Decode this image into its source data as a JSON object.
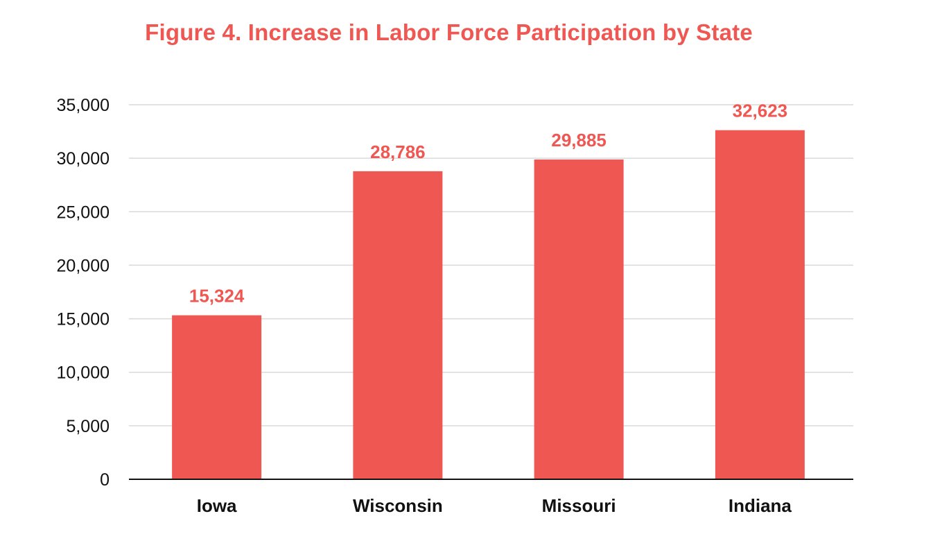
{
  "chart_data": {
    "type": "bar",
    "title": "Figure 4.  Increase in Labor Force Participation by State",
    "xlabel": "",
    "ylabel": "",
    "categories": [
      "Iowa",
      "Wisconsin",
      "Missouri",
      "Indiana"
    ],
    "values": [
      15324,
      28786,
      29885,
      32623
    ],
    "data_labels": [
      "15,324",
      "28,786",
      "29,885",
      "32,623"
    ],
    "ylim": [
      0,
      35000
    ],
    "yticks": [
      0,
      5000,
      10000,
      15000,
      20000,
      25000,
      30000,
      35000
    ],
    "ytick_labels": [
      "0",
      "5,000",
      "10,000",
      "15,000",
      "20,000",
      "25,000",
      "30,000",
      "35,000"
    ],
    "grid": true,
    "legend": "none",
    "colors": {
      "bar": "#ef5753",
      "title": "#ef5753",
      "data_label": "#ef5753",
      "grid": "#d9d9d9",
      "axis": "#111111"
    }
  }
}
